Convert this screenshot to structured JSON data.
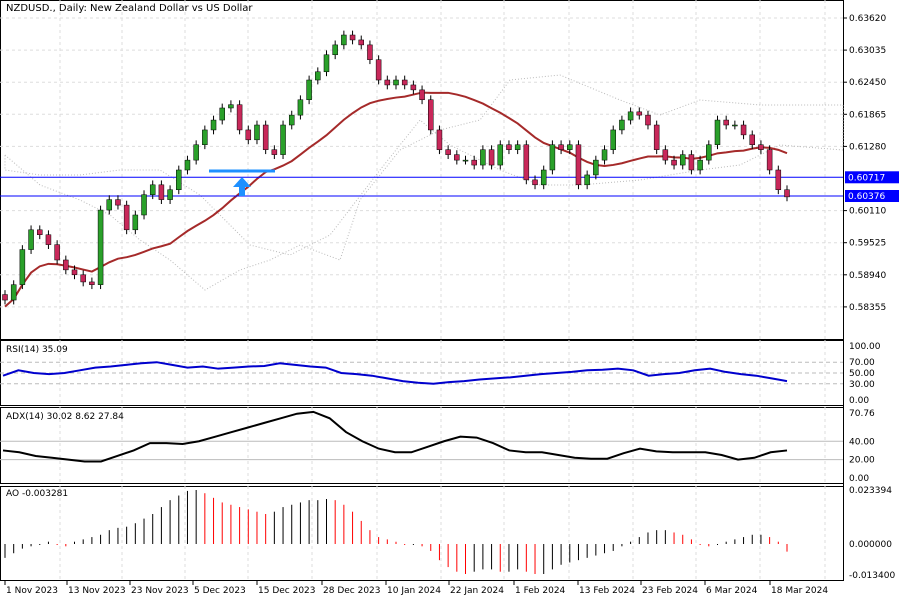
{
  "header": {
    "title": "NZDUSD., Daily:  New Zealand Dollar vs US Dollar"
  },
  "colors": {
    "bull": "#2aa02a",
    "bear": "#c8285a",
    "ma": "#a52a2a",
    "level": "#0000ff",
    "rsi": "#0000cd",
    "adx": "#000000",
    "ao_up": "#000000",
    "ao_down": "#ff0000",
    "arrow": "#1e90ff"
  },
  "chart_data": [
    {
      "type": "candlestick",
      "name": "NZDUSD., Daily",
      "closes": [
        0.5848,
        0.5876,
        0.594,
        0.5976,
        0.5967,
        0.5949,
        0.5921,
        0.5903,
        0.5894,
        0.5881,
        0.5876,
        0.6012,
        0.6031,
        0.6021,
        0.5976,
        0.6003,
        0.604,
        0.6058,
        0.6031,
        0.6049,
        0.6085,
        0.6103,
        0.6131,
        0.6158,
        0.6176,
        0.6198,
        0.6204,
        0.6158,
        0.614,
        0.6167,
        0.6122,
        0.6113,
        0.6167,
        0.6185,
        0.6213,
        0.6249,
        0.6264,
        0.6295,
        0.6313,
        0.6331,
        0.6322,
        0.6313,
        0.6286,
        0.6249,
        0.624,
        0.6249,
        0.624,
        0.6231,
        0.6213,
        0.6158,
        0.6122,
        0.6113,
        0.6103,
        0.6103,
        0.6094,
        0.6122,
        0.6094,
        0.6131,
        0.6122,
        0.6131,
        0.6067,
        0.6058,
        0.6085,
        0.6131,
        0.6122,
        0.6131,
        0.6058,
        0.6076,
        0.6103,
        0.6122,
        0.6158,
        0.6176,
        0.6191,
        0.6185,
        0.6167,
        0.6122,
        0.6103,
        0.6094,
        0.6113,
        0.6085,
        0.6103,
        0.6131,
        0.6176,
        0.6167,
        0.6167,
        0.6149,
        0.6131,
        0.6122,
        0.6085,
        0.6049,
        0.6036
      ],
      "price_ticks": [
        "0.63620",
        "0.63035",
        "0.62450",
        "0.61865",
        "0.61280",
        "0.60110",
        "0.59525",
        "0.58940",
        "0.58355"
      ],
      "levels": [
        {
          "label": "0.60717",
          "value": 0.60717
        },
        {
          "label": "0.60376",
          "value": 0.60376
        }
      ],
      "ylim": [
        0.5805,
        0.6395
      ],
      "date_ticks": [
        "1 Nov 2023",
        "13 Nov 2023",
        "23 Nov 2023",
        "5 Dec 2023",
        "15 Dec 2023",
        "28 Dec 2023",
        "10 Jan 2024",
        "22 Jan 2024",
        "1 Feb 2024",
        "13 Feb 2024",
        "23 Feb 2024",
        "6 Mar 2024",
        "18 Mar 2024"
      ]
    },
    {
      "type": "line",
      "label": "RSI(14) 35.09",
      "values": [
        45,
        55,
        50,
        48,
        50,
        55,
        60,
        62,
        65,
        68,
        70,
        65,
        60,
        62,
        58,
        60,
        62,
        63,
        68,
        65,
        62,
        60,
        50,
        48,
        45,
        40,
        35,
        32,
        30,
        33,
        35,
        38,
        40,
        42,
        45,
        48,
        50,
        52,
        55,
        56,
        58,
        55,
        45,
        48,
        50,
        55,
        58,
        52,
        48,
        45,
        40,
        35
      ],
      "ticks": [
        "100.00",
        "70.00",
        "50.00",
        "30.00",
        "0.00"
      ],
      "ylim": [
        0,
        100
      ]
    },
    {
      "type": "line",
      "label": "ADX(14) 30.02 8.62 27.84",
      "values": [
        30,
        28,
        24,
        22,
        20,
        18,
        18,
        24,
        30,
        38,
        38,
        37,
        40,
        45,
        50,
        55,
        60,
        65,
        70,
        72,
        65,
        50,
        40,
        32,
        28,
        28,
        34,
        40,
        45,
        44,
        38,
        30,
        28,
        28,
        25,
        22,
        21,
        21,
        27,
        32,
        29,
        28,
        28,
        28,
        25,
        20,
        22,
        28,
        30
      ],
      "ticks": [
        "70.76",
        "40.00",
        "20.00",
        "0.00"
      ],
      "ylim": [
        0,
        70.76
      ]
    },
    {
      "type": "bar",
      "label": "AO -0.003281",
      "values": [
        -0.006,
        -0.004,
        -0.002,
        -0.001,
        0.0,
        0.001,
        0.0,
        -0.001,
        0.001,
        0.002,
        0.003,
        0.004,
        0.006,
        0.007,
        0.0075,
        0.009,
        0.011,
        0.013,
        0.016,
        0.019,
        0.021,
        0.023,
        0.0234,
        0.022,
        0.02,
        0.018,
        0.017,
        0.016,
        0.015,
        0.014,
        0.013,
        0.014,
        0.016,
        0.017,
        0.018,
        0.019,
        0.019,
        0.0195,
        0.019,
        0.017,
        0.014,
        0.01,
        0.006,
        0.003,
        0.002,
        0.001,
        0.0,
        0.0,
        -0.001,
        -0.003,
        -0.007,
        -0.01,
        -0.012,
        -0.013,
        -0.012,
        -0.011,
        -0.011,
        -0.012,
        -0.012,
        -0.011,
        -0.012,
        -0.013,
        -0.013,
        -0.011,
        -0.009,
        -0.008,
        -0.007,
        -0.006,
        -0.005,
        -0.004,
        -0.003,
        -0.001,
        0.001,
        0.003,
        0.005,
        0.006,
        0.006,
        0.005,
        0.004,
        0.002,
        0.0,
        -0.001,
        0.0,
        0.001,
        0.002,
        0.003,
        0.004,
        0.004,
        0.003,
        0.001,
        -0.003281
      ],
      "ticks": [
        "0.023394",
        "0.000000",
        "-0.013400"
      ],
      "ylim": [
        -0.0134,
        0.023394
      ]
    }
  ]
}
